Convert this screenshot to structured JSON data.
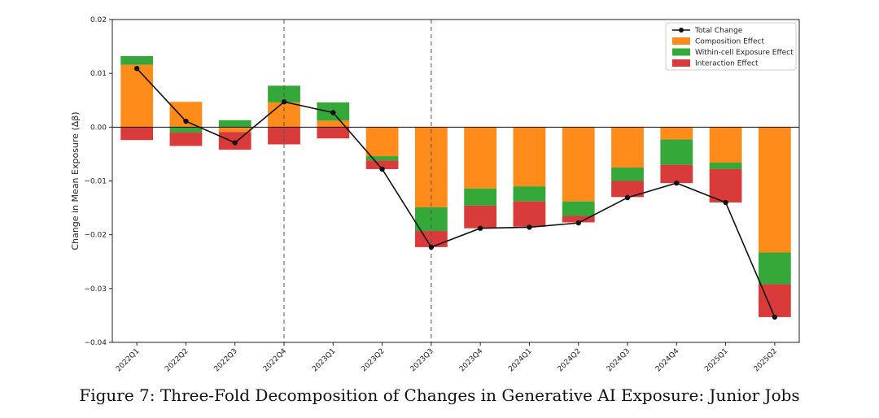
{
  "caption": "Figure 7: Three-Fold Decomposition of Changes in Generative AI Exposure: Junior Jobs",
  "chart_data": {
    "type": "bar",
    "stacked": true,
    "title": "",
    "xlabel": "",
    "ylabel": "Change in Mean Exposure (Δβ)",
    "ylim": [
      -0.04,
      0.02
    ],
    "yticks": [
      -0.04,
      -0.03,
      -0.02,
      -0.01,
      0.0,
      0.01,
      0.02
    ],
    "ytick_labels": [
      "−0.04",
      "−0.03",
      "−0.02",
      "−0.01",
      "0.00",
      "0.01",
      "0.02"
    ],
    "categories": [
      "2022Q1",
      "2022Q2",
      "2022Q3",
      "2022Q4",
      "2023Q1",
      "2023Q2",
      "2023Q3",
      "2023Q4",
      "2024Q1",
      "2024Q2",
      "2024Q3",
      "2024Q4",
      "2025Q1",
      "2025Q2"
    ],
    "vlines": [
      "2022Q4",
      "2023Q3"
    ],
    "grid": false,
    "legend_position": "top-right",
    "colors": {
      "composition": "#ff8c1a",
      "within": "#35a83a",
      "interaction": "#d93b3b",
      "total": "#111111"
    },
    "series": [
      {
        "name": "Composition Effect",
        "key": "composition",
        "values": [
          0.0116,
          0.0047,
          -0.0009,
          0.0046,
          0.0012,
          -0.0054,
          -0.0149,
          -0.0114,
          -0.011,
          -0.0138,
          -0.0075,
          -0.0023,
          -0.0066,
          -0.0233
        ]
      },
      {
        "name": "Within-cell Exposure Effect",
        "key": "within",
        "values": [
          0.0016,
          -0.001,
          0.0013,
          0.0031,
          0.0034,
          -0.0008,
          -0.0044,
          -0.0032,
          -0.0028,
          -0.0027,
          -0.0025,
          -0.0047,
          -0.0012,
          -0.0059
        ]
      },
      {
        "name": "Interaction Effect",
        "key": "interaction",
        "values": [
          -0.0024,
          -0.0025,
          -0.0033,
          -0.0032,
          -0.0021,
          -0.0016,
          -0.003,
          -0.0042,
          -0.0047,
          -0.0012,
          -0.003,
          -0.0034,
          -0.0062,
          -0.0061
        ]
      }
    ],
    "total": {
      "name": "Total Change",
      "values": [
        0.0109,
        0.0011,
        -0.0029,
        0.0047,
        0.0027,
        -0.0078,
        -0.0223,
        -0.0188,
        -0.0186,
        -0.0178,
        -0.0131,
        -0.0104,
        -0.014,
        -0.0353
      ]
    }
  }
}
